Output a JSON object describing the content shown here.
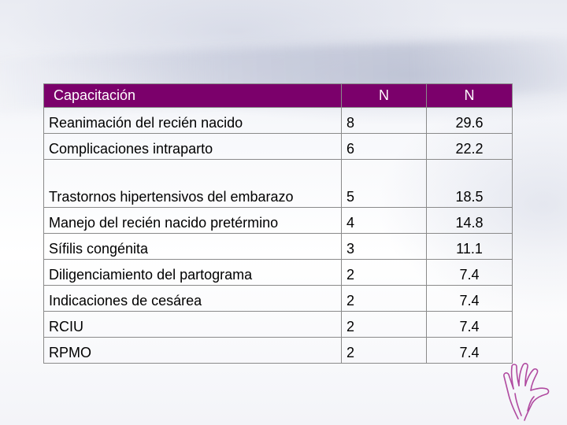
{
  "table": {
    "headers": [
      "Capacitación",
      "N",
      "N"
    ],
    "rows": [
      {
        "label": "Reanimación del recién nacido",
        "n": "8",
        "pct": "29.6"
      },
      {
        "label": "Complicaciones intraparto",
        "n": "6",
        "pct": "22.2"
      },
      {
        "label": "Trastornos hipertensivos del embarazo",
        "n": "5",
        "pct": "18.5"
      },
      {
        "label": "Manejo del recién nacido pretérmino",
        "n": "4",
        "pct": "14.8"
      },
      {
        "label": "Sífilis congénita",
        "n": "3",
        "pct": "11.1"
      },
      {
        "label": "Diligenciamiento del partograma",
        "n": "2",
        "pct": "7.4"
      },
      {
        "label": "Indicaciones de cesárea",
        "n": "2",
        "pct": "7.4"
      },
      {
        "label": "RCIU",
        "n": "2",
        "pct": "7.4"
      },
      {
        "label": "RPMO",
        "n": "2",
        "pct": "7.4"
      }
    ]
  },
  "colors": {
    "header_bg": "#7b006b",
    "header_text": "#ffffff",
    "border": "#8a8a8a"
  },
  "decoration": {
    "corner_icon": "hand-outline-icon"
  }
}
